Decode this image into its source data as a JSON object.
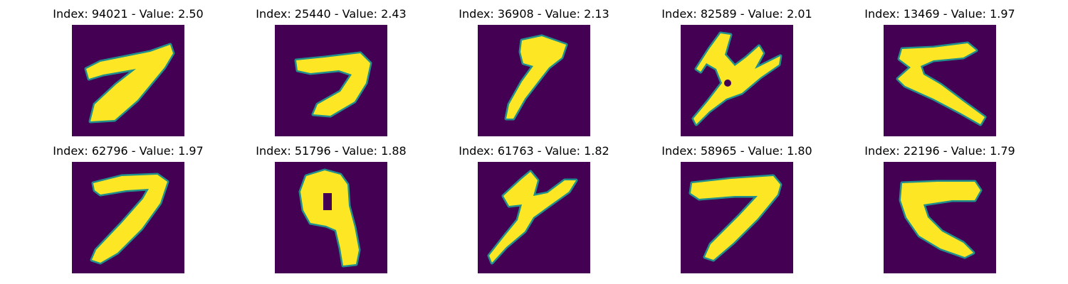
{
  "colors": {
    "background": "#440154",
    "mid": "#21908d",
    "foreground": "#fde725"
  },
  "panels": [
    {
      "title": "Index: 94021 - Value: 2.50",
      "index": "94021",
      "value": 2.5,
      "glyph": "7"
    },
    {
      "title": "Index: 25440 - Value: 2.43",
      "index": "25440",
      "value": 2.43,
      "glyph": "7"
    },
    {
      "title": "Index: 36908 - Value: 2.13",
      "index": "36908",
      "value": 2.13,
      "glyph": "7"
    },
    {
      "title": "Index: 82589 - Value: 2.01",
      "index": "82589",
      "value": 2.01,
      "glyph": "scribble"
    },
    {
      "title": "Index: 13469 - Value: 1.97",
      "index": "13469",
      "value": 1.97,
      "glyph": "7-angled"
    },
    {
      "title": "Index: 62796 - Value: 1.97",
      "index": "62796",
      "value": 1.97,
      "glyph": "7"
    },
    {
      "title": "Index: 51796 - Value: 1.88",
      "index": "51796",
      "value": 1.88,
      "glyph": "9"
    },
    {
      "title": "Index: 61763 - Value: 1.82",
      "index": "61763",
      "value": 1.82,
      "glyph": "scribble"
    },
    {
      "title": "Index: 58965 - Value: 1.80",
      "index": "58965",
      "value": 1.8,
      "glyph": "7"
    },
    {
      "title": "Index: 22196 - Value: 1.79",
      "index": "22196",
      "value": 1.79,
      "glyph": "7-angled"
    }
  ]
}
